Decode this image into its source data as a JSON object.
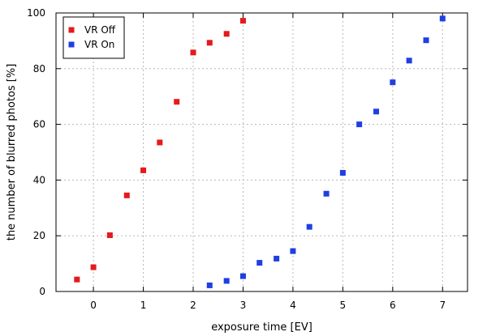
{
  "chart_data": {
    "type": "scatter",
    "xlabel": "exposure time [EV]",
    "ylabel": "the number of blurred photos [%]",
    "xlim": [
      -0.75,
      7.5
    ],
    "ylim": [
      0,
      100
    ],
    "x_ticks": [
      0,
      1,
      2,
      3,
      4,
      5,
      6,
      7
    ],
    "y_ticks": [
      0,
      20,
      40,
      60,
      80,
      100
    ],
    "grid": true,
    "legend_position": "top-left",
    "series": [
      {
        "name": "VR Off",
        "color": "#e41a1c",
        "points": [
          [
            -0.33,
            4.3
          ],
          [
            0,
            8.7
          ],
          [
            0.33,
            20.2
          ],
          [
            0.67,
            34.5
          ],
          [
            1,
            43.5
          ],
          [
            1.33,
            53.5
          ],
          [
            1.67,
            68.1
          ],
          [
            2,
            85.8
          ],
          [
            2.33,
            89.3
          ],
          [
            2.67,
            92.5
          ],
          [
            3,
            97.2
          ]
        ]
      },
      {
        "name": "VR On",
        "color": "#1f3fe0",
        "points": [
          [
            2.33,
            2.2
          ],
          [
            2.67,
            3.8
          ],
          [
            3,
            5.5
          ],
          [
            3.33,
            10.3
          ],
          [
            3.67,
            11.8
          ],
          [
            4,
            14.5
          ],
          [
            4.33,
            23.2
          ],
          [
            4.67,
            35.1
          ],
          [
            5,
            42.6
          ],
          [
            5.33,
            60.0
          ],
          [
            5.67,
            64.6
          ],
          [
            6,
            75.1
          ],
          [
            6.33,
            82.9
          ],
          [
            6.67,
            90.2
          ],
          [
            7,
            98.0
          ]
        ]
      }
    ]
  }
}
